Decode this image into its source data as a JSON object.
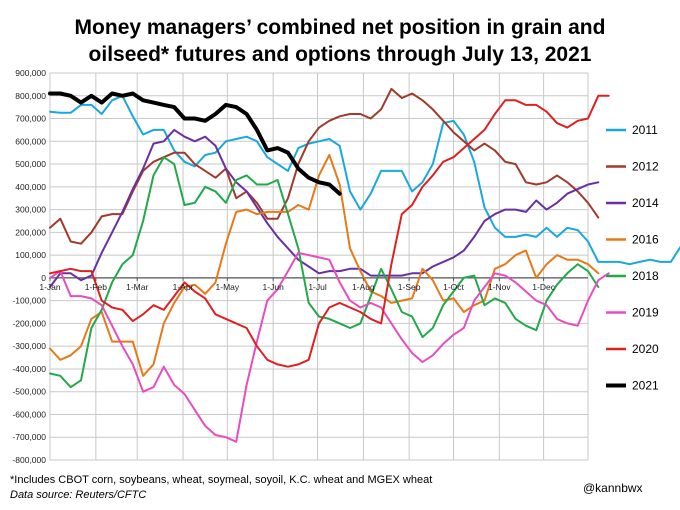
{
  "title_line1": "Money managers’ combined net position in grain and",
  "title_line2": "oilseed* futures and options through July 13, 2021",
  "footnote": "*Includes CBOT corn, soybeans, wheat, soymeal, soyoil, K.C. wheat and MGEX wheat",
  "source": "Data source: Reuters/CFTC",
  "credit": "@kannbwx",
  "chart_data": {
    "type": "line",
    "x_unit": "week of year (0 = 1-Jan, 52 = end of Dec)",
    "ylim": [
      -800000,
      900000
    ],
    "y_ticks": [
      900000,
      800000,
      700000,
      600000,
      500000,
      400000,
      300000,
      200000,
      100000,
      0,
      -100000,
      -200000,
      -300000,
      -400000,
      -500000,
      -600000,
      -700000,
      -800000
    ],
    "y_tick_labels": [
      "900,000",
      "800,000",
      "700,000",
      "600,000",
      "500,000",
      "400,000",
      "300,000",
      "200,000",
      "100,000",
      "0",
      "-100,000",
      "-200,000",
      "-300,000",
      "-400,000",
      "-500,000",
      "-600,000",
      "-700,000",
      "-800,000"
    ],
    "x_ticks": [
      {
        "label": "1-Jan",
        "week": 0
      },
      {
        "label": "1-Feb",
        "week": 4.43
      },
      {
        "label": "1-Mar",
        "week": 8.43
      },
      {
        "label": "1-Apr",
        "week": 12.86
      },
      {
        "label": "1-May",
        "week": 17.14
      },
      {
        "label": "1-Jun",
        "week": 21.57
      },
      {
        "label": "1-Jul",
        "week": 25.86
      },
      {
        "label": "1-Aug",
        "week": 30.29
      },
      {
        "label": "1-Sep",
        "week": 34.71
      },
      {
        "label": "1-Oct",
        "week": 39
      },
      {
        "label": "1-Nov",
        "week": 43.43
      },
      {
        "label": "1-Dec",
        "week": 47.71
      }
    ],
    "grid": "horizontal and vertical",
    "legend_position": "right",
    "series": [
      {
        "name": "2011",
        "color": "#1aa7e0",
        "width": 2,
        "values": [
          730000,
          725000,
          725000,
          760000,
          760000,
          720000,
          780000,
          800000,
          710000,
          630000,
          650000,
          650000,
          560000,
          510000,
          490000,
          540000,
          550000,
          600000,
          610000,
          620000,
          600000,
          530000,
          500000,
          470000,
          570000,
          590000,
          600000,
          610000,
          580000,
          380000,
          300000,
          370000,
          470000,
          470000,
          470000,
          380000,
          420000,
          500000,
          680000,
          690000,
          630000,
          510000,
          310000,
          220000,
          180000,
          180000,
          190000,
          180000,
          220000,
          180000,
          220000,
          210000,
          160000,
          70000,
          70000,
          70000,
          60000,
          70000,
          80000,
          70000,
          70000,
          140000
        ]
      },
      {
        "name": "2012",
        "color": "#9e3b2c",
        "width": 2,
        "values": [
          220000,
          260000,
          160000,
          150000,
          200000,
          270000,
          280000,
          280000,
          380000,
          470000,
          510000,
          530000,
          550000,
          550000,
          500000,
          470000,
          440000,
          480000,
          350000,
          380000,
          330000,
          260000,
          260000,
          350000,
          500000,
          600000,
          660000,
          690000,
          710000,
          720000,
          720000,
          700000,
          740000,
          830000,
          790000,
          810000,
          780000,
          740000,
          690000,
          640000,
          600000,
          560000,
          590000,
          560000,
          510000,
          500000,
          420000,
          410000,
          420000,
          450000,
          420000,
          380000,
          330000,
          265000
        ]
      },
      {
        "name": "2014",
        "color": "#6a2fa0",
        "width": 2,
        "values": [
          -40000,
          20000,
          20000,
          -10000,
          10000,
          110000,
          200000,
          290000,
          390000,
          480000,
          590000,
          600000,
          650000,
          620000,
          600000,
          620000,
          580000,
          480000,
          420000,
          380000,
          310000,
          240000,
          180000,
          130000,
          80000,
          50000,
          20000,
          30000,
          30000,
          40000,
          40000,
          10000,
          10000,
          10000,
          10000,
          20000,
          20000,
          50000,
          70000,
          90000,
          120000,
          180000,
          250000,
          280000,
          300000,
          300000,
          290000,
          340000,
          300000,
          330000,
          370000,
          390000,
          410000,
          420000
        ]
      },
      {
        "name": "2016",
        "color": "#e57a1a",
        "width": 2,
        "values": [
          -310000,
          -360000,
          -340000,
          -300000,
          -180000,
          -150000,
          -280000,
          -280000,
          -280000,
          -430000,
          -380000,
          -200000,
          -110000,
          -40000,
          -30000,
          -70000,
          -20000,
          150000,
          290000,
          300000,
          280000,
          290000,
          290000,
          290000,
          320000,
          300000,
          450000,
          540000,
          410000,
          130000,
          30000,
          -60000,
          -80000,
          -110000,
          -100000,
          -90000,
          40000,
          -10000,
          -100000,
          -90000,
          -150000,
          -120000,
          -100000,
          40000,
          60000,
          100000,
          120000,
          0,
          60000,
          100000,
          80000,
          80000,
          60000,
          20000
        ]
      },
      {
        "name": "2018",
        "color": "#23a84a",
        "width": 2,
        "values": [
          -420000,
          -430000,
          -480000,
          -450000,
          -220000,
          -140000,
          -20000,
          60000,
          100000,
          250000,
          450000,
          530000,
          500000,
          320000,
          330000,
          400000,
          380000,
          330000,
          430000,
          450000,
          410000,
          410000,
          430000,
          280000,
          130000,
          -110000,
          -170000,
          -180000,
          -200000,
          -220000,
          -200000,
          -80000,
          40000,
          -50000,
          -150000,
          -170000,
          -260000,
          -220000,
          -120000,
          -60000,
          0,
          10000,
          -120000,
          -90000,
          -110000,
          -180000,
          -210000,
          -230000,
          -100000,
          -30000,
          20000,
          60000,
          30000,
          -40000
        ]
      },
      {
        "name": "2019",
        "color": "#e64ec0",
        "width": 2,
        "values": [
          0,
          30000,
          -80000,
          -80000,
          -90000,
          -120000,
          -210000,
          -300000,
          -380000,
          -500000,
          -480000,
          -390000,
          -470000,
          -510000,
          -580000,
          -650000,
          -690000,
          -700000,
          -720000,
          -470000,
          -280000,
          -100000,
          -50000,
          30000,
          110000,
          100000,
          90000,
          80000,
          -20000,
          -100000,
          -130000,
          -110000,
          -130000,
          -200000,
          -270000,
          -330000,
          -370000,
          -340000,
          -290000,
          -250000,
          -220000,
          -100000,
          -40000,
          20000,
          10000,
          -20000,
          -60000,
          -100000,
          -120000,
          -180000,
          -200000,
          -210000,
          -100000,
          -10000,
          20000
        ]
      },
      {
        "name": "2020",
        "color": "#e02020",
        "width": 2,
        "values": [
          20000,
          30000,
          40000,
          30000,
          30000,
          -100000,
          -130000,
          -140000,
          -190000,
          -160000,
          -120000,
          -140000,
          -80000,
          -20000,
          -60000,
          -90000,
          -160000,
          -180000,
          -200000,
          -220000,
          -300000,
          -360000,
          -380000,
          -390000,
          -380000,
          -360000,
          -200000,
          -130000,
          -110000,
          -130000,
          -150000,
          -180000,
          -200000,
          60000,
          280000,
          320000,
          400000,
          450000,
          510000,
          530000,
          570000,
          610000,
          650000,
          720000,
          780000,
          780000,
          760000,
          760000,
          730000,
          680000,
          660000,
          690000,
          700000,
          800000,
          800000
        ]
      },
      {
        "name": "2021",
        "color": "#000000",
        "width": 4,
        "values": [
          810000,
          810000,
          800000,
          770000,
          800000,
          770000,
          810000,
          800000,
          810000,
          780000,
          770000,
          760000,
          750000,
          700000,
          700000,
          690000,
          720000,
          760000,
          750000,
          720000,
          650000,
          560000,
          570000,
          550000,
          480000,
          440000,
          420000,
          410000,
          370000
        ]
      }
    ]
  }
}
